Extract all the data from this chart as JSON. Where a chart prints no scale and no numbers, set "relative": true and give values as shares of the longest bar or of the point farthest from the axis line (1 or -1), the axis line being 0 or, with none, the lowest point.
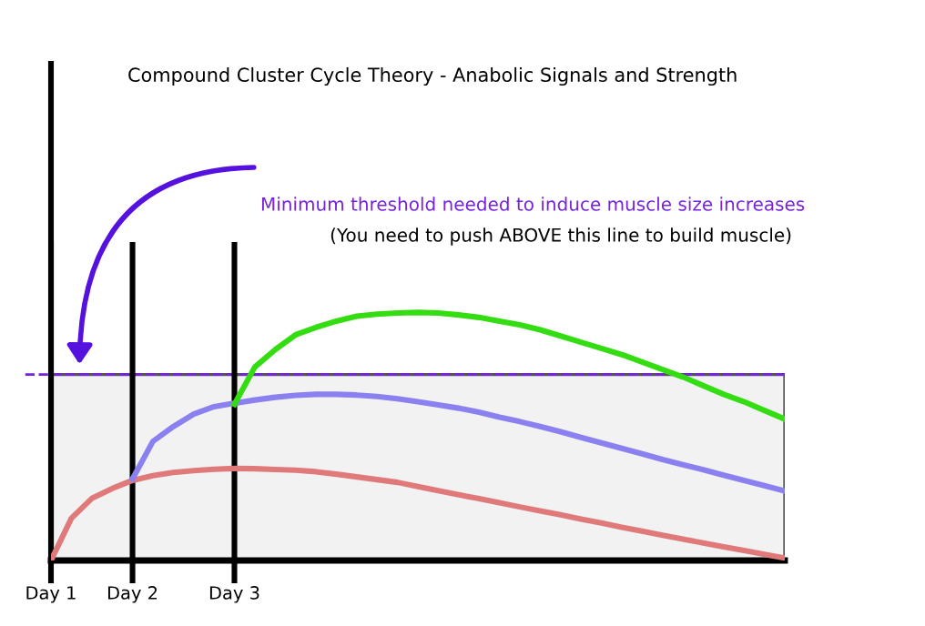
{
  "chart_data": {
    "type": "line",
    "title": "Compound Cluster Cycle Theory - Anabolic Signals and Strength",
    "relative": true,
    "tick_labels": "x",
    "grid": "x",
    "marker": "none",
    "line_style": "solid",
    "categories": [
      "Day 1",
      null,
      null,
      null,
      "Day 2",
      null,
      null,
      null,
      null,
      "Day 3",
      null,
      null,
      null,
      null,
      null,
      null,
      null,
      null,
      null,
      null,
      null,
      null,
      null,
      null,
      null,
      null,
      null,
      null,
      null,
      null,
      null,
      null,
      null,
      null,
      null,
      null,
      null
    ],
    "series": [
      {
        "color": "#e07a7a",
        "values": [
          0.0,
          0.17,
          0.25,
          0.29,
          0.323,
          0.342,
          0.355,
          0.362,
          0.368,
          0.371,
          0.37,
          0.367,
          0.364,
          0.358,
          0.348,
          0.337,
          0.326,
          0.315,
          0.298,
          0.282,
          0.265,
          0.249,
          0.233,
          0.216,
          0.2,
          0.184,
          0.167,
          0.151,
          0.134,
          0.118,
          0.102,
          0.086,
          0.071,
          0.055,
          0.04,
          0.025,
          0.01
        ]
      },
      {
        "color": "#8a80f0",
        "values": [
          null,
          null,
          null,
          null,
          0.329,
          0.48,
          0.54,
          0.59,
          0.62,
          0.634,
          0.647,
          0.658,
          0.666,
          0.67,
          0.67,
          0.667,
          0.661,
          0.652,
          0.64,
          0.627,
          0.614,
          0.598,
          0.578,
          0.56,
          0.54,
          0.519,
          0.496,
          0.474,
          0.452,
          0.43,
          0.407,
          0.386,
          0.366,
          0.344,
          0.323,
          0.302,
          0.28
        ]
      },
      {
        "color": "#33dd11",
        "values": [
          null,
          null,
          null,
          null,
          null,
          null,
          null,
          null,
          null,
          0.63,
          0.78,
          0.85,
          0.91,
          0.94,
          0.965,
          0.985,
          0.993,
          0.998,
          1.0,
          0.998,
          0.99,
          0.98,
          0.965,
          0.95,
          0.93,
          0.905,
          0.88,
          0.855,
          0.83,
          0.8,
          0.77,
          0.74,
          0.705,
          0.67,
          0.64,
          0.605,
          0.57
        ]
      }
    ],
    "ref_lines": [
      {
        "axis": "y",
        "value": 0.75,
        "label": "Minimum threshold needed to induce muscle size increases",
        "color": "#7722dd",
        "line_style": "dashed"
      }
    ],
    "bands": [
      {
        "axis": "y",
        "from": 0,
        "to": 0.75,
        "color": "#f2f2f2"
      }
    ],
    "annotations": [
      "(You need to push ABOVE this line to build muscle)"
    ]
  }
}
